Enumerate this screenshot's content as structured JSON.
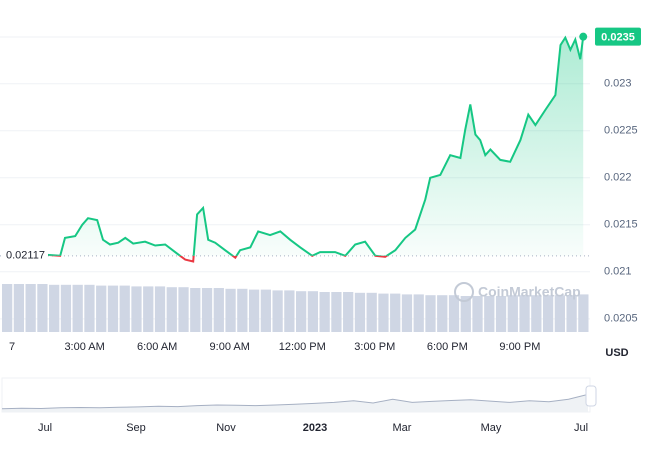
{
  "chart_data": {
    "type": "line",
    "x": [
      1.45,
      1.99,
      2.19,
      2.61,
      2.9,
      3.14,
      3.52,
      3.76,
      4.05,
      4.39,
      4.68,
      5.01,
      5.5,
      5.92,
      6.33,
      6.74,
      7.16,
      7.49,
      7.65,
      7.9,
      8.11,
      8.4,
      8.81,
      9.23,
      9.43,
      9.85,
      10.18,
      10.67,
      11.09,
      11.5,
      11.92,
      12.41,
      12.74,
      13.36,
      13.78,
      14.19,
      14.6,
      15.02,
      15.43,
      15.85,
      16.26,
      16.67,
      17.09,
      17.29,
      17.71,
      18.12,
      18.54,
      18.74,
      18.95,
      19.16,
      19.36,
      19.57,
      19.78,
      20.19,
      20.6,
      21.02,
      21.35,
      21.64,
      22.05,
      22.47,
      22.68,
      22.88,
      23.09,
      23.29,
      23.5,
      23.62
    ],
    "series": [
      {
        "color": "#16c784",
        "below_color": "#ea3943",
        "values": [
          0.02118,
          0.02117,
          0.02136,
          0.02138,
          0.0215,
          0.02157,
          0.02155,
          0.02134,
          0.02129,
          0.02131,
          0.02136,
          0.0213,
          0.02132,
          0.02128,
          0.02129,
          0.02121,
          0.02113,
          0.02111,
          0.02161,
          0.02168,
          0.02134,
          0.02131,
          0.02123,
          0.02115,
          0.02123,
          0.02126,
          0.02143,
          0.02139,
          0.02143,
          0.02134,
          0.02126,
          0.02117,
          0.02121,
          0.02121,
          0.02117,
          0.02129,
          0.02132,
          0.02117,
          0.02116,
          0.02123,
          0.02136,
          0.02145,
          0.02177,
          0.022,
          0.02203,
          0.02224,
          0.02221,
          0.02251,
          0.02278,
          0.02246,
          0.0224,
          0.02224,
          0.0223,
          0.02219,
          0.02217,
          0.0224,
          0.02267,
          0.02256,
          0.02272,
          0.02288,
          0.02341,
          0.02349,
          0.02336,
          0.02347,
          0.02326,
          0.0235
        ]
      }
    ],
    "xlim": [
      -0.5,
      23.9
    ],
    "xticks": [
      {
        "value": 0,
        "label": "7"
      },
      {
        "value": 3,
        "label": "3:00 AM"
      },
      {
        "value": 6,
        "label": "6:00 AM"
      },
      {
        "value": 9,
        "label": "9:00 AM"
      },
      {
        "value": 12,
        "label": "12:00 PM"
      },
      {
        "value": 15,
        "label": "3:00 PM"
      },
      {
        "value": 18,
        "label": "6:00 PM"
      },
      {
        "value": 21,
        "label": "9:00 PM"
      }
    ],
    "ylim": [
      0.02036,
      0.02389
    ],
    "yticks": [
      0.0205,
      0.021,
      0.0215,
      0.022,
      0.0225,
      0.023
    ],
    "grid": true,
    "reference_price": 0.02117,
    "current_price": 0.0235,
    "currency": "USD",
    "watermark": "CoinMarketCap",
    "volume": {
      "color": "#cfd6e4",
      "ylim": [
        0,
        100
      ],
      "values": [
        60,
        60,
        60,
        60,
        59,
        59,
        59,
        59,
        58,
        58,
        58,
        57,
        57,
        57,
        56,
        56,
        55,
        55,
        55,
        54,
        54,
        53,
        53,
        52,
        52,
        51,
        51,
        50,
        50,
        50,
        49,
        49,
        48,
        48,
        47,
        47,
        46,
        46,
        46,
        45,
        45,
        45,
        45,
        46,
        46,
        46,
        46,
        46,
        46,
        47
      ]
    },
    "navigator": {
      "color": "#a6b0c3",
      "ylim": [
        0,
        100
      ],
      "categories": [
        "Jul",
        "Sep",
        "Nov",
        "2023",
        "Mar",
        "May",
        "Jul"
      ],
      "values": [
        10,
        12,
        11,
        13,
        14,
        13,
        15,
        16,
        18,
        17,
        20,
        22,
        21,
        20,
        22,
        24,
        27,
        30,
        35,
        28,
        40,
        30,
        33,
        36,
        38,
        34,
        30,
        35,
        32,
        40,
        55
      ]
    }
  }
}
